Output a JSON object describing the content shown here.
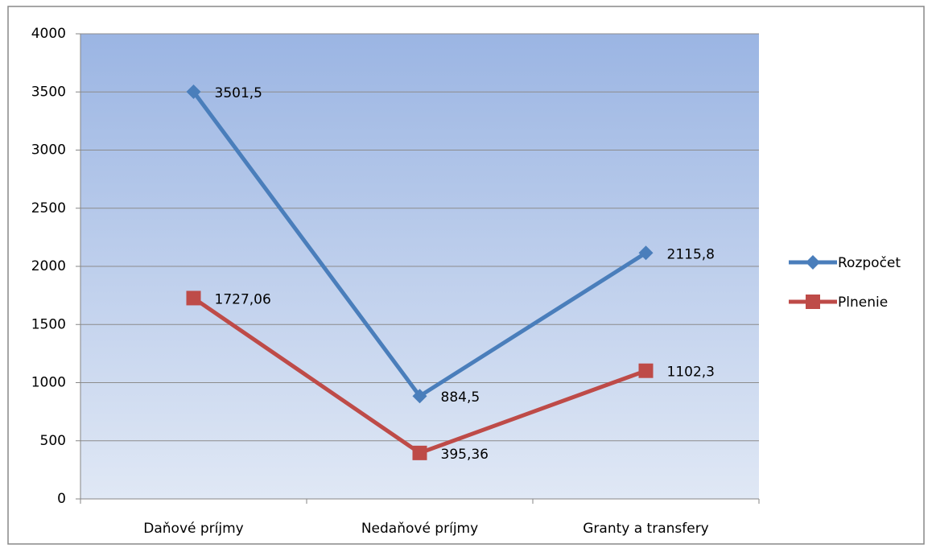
{
  "chart_data": {
    "type": "line",
    "categories": [
      "Daňové príjmy",
      "Nedaňové príjmy",
      "Granty a transfery"
    ],
    "series": [
      {
        "name": "Rozpočet",
        "color": "#4a7ebb",
        "marker": "diamond",
        "values": [
          3501.5,
          884.5,
          2115.8
        ],
        "value_labels": [
          "3501,5",
          "884,5",
          "2115,8"
        ]
      },
      {
        "name": "Plnenie",
        "color": "#be4b48",
        "marker": "square",
        "values": [
          1727.06,
          395.36,
          1102.3
        ],
        "value_labels": [
          "1727,06",
          "395,36",
          "1102,3"
        ]
      }
    ],
    "ylim": [
      0,
      4000
    ],
    "yticks": [
      0,
      500,
      1000,
      1500,
      2000,
      2500,
      3000,
      3500,
      4000
    ],
    "grid": true,
    "legend": "right"
  }
}
